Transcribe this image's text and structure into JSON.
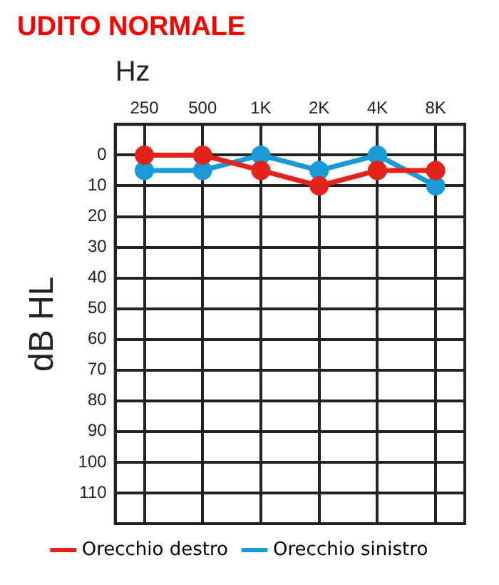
{
  "chart_data": {
    "type": "line",
    "title": "UDITO NORMALE",
    "xlabel": "Hz",
    "ylabel": "dB HL",
    "categories": [
      "250",
      "500",
      "1K",
      "2K",
      "4K",
      "8K"
    ],
    "series": [
      {
        "name": "Orecchio destro",
        "color": "#e2231a",
        "values": [
          0,
          0,
          5,
          10,
          5,
          5
        ]
      },
      {
        "name": "Orecchio sinistro",
        "color": "#1a9ad6",
        "values": [
          5,
          5,
          0,
          5,
          0,
          10
        ]
      }
    ],
    "ylim": [
      120,
      -10
    ],
    "yticks": [
      0,
      10,
      20,
      30,
      40,
      50,
      60,
      70,
      80,
      90,
      100,
      110
    ],
    "grid": true,
    "legend": "bottom",
    "marker": "circle",
    "line_style": "solid"
  }
}
